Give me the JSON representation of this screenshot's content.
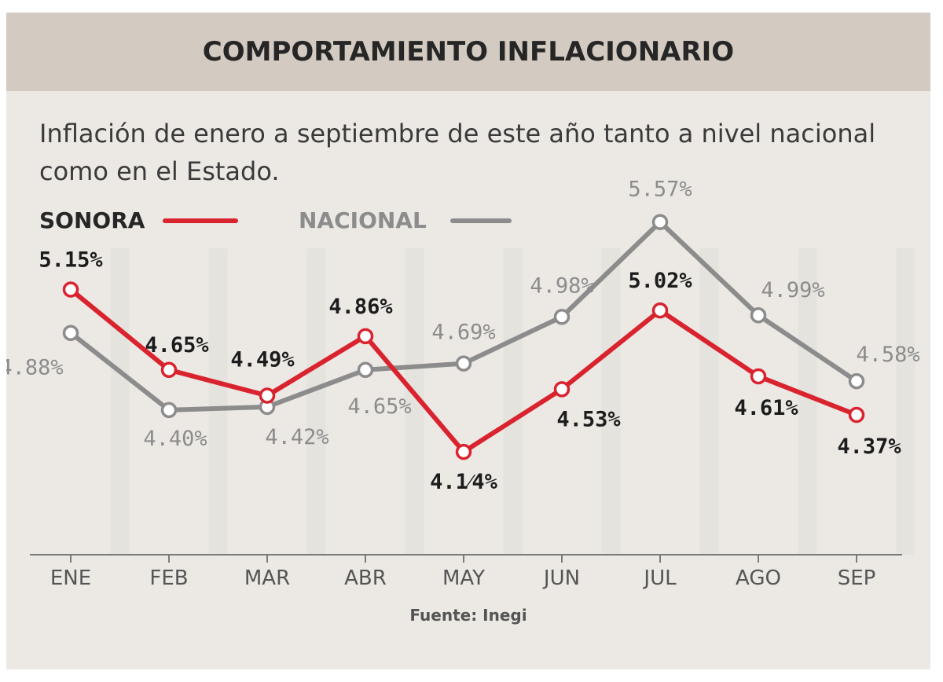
{
  "header": {
    "title": "COMPORTAMIENTO INFLACIONARIO"
  },
  "subtitle": "Inflación de enero a septiembre de este año tanto a nivel nacional como en el Estado.",
  "source": "Fuente: Inegi",
  "colors": {
    "sonora": "#d9232e",
    "nacional": "#8c8c8c",
    "header_bg": "#d3cbc1",
    "panel_bg": "#ece9e5"
  },
  "chart_data": {
    "type": "line",
    "title": "COMPORTAMIENTO INFLACIONARIO",
    "subtitle": "Inflación de enero a septiembre de este año tanto a nivel nacional como en el Estado.",
    "categories": [
      "ENE",
      "FEB",
      "MAR",
      "ABR",
      "MAY",
      "JUN",
      "JUL",
      "AGO",
      "SEP"
    ],
    "series": [
      {
        "name": "SONORA",
        "color": "#d9232e",
        "values": [
          5.15,
          4.65,
          4.49,
          4.86,
          4.14,
          4.53,
          5.02,
          4.61,
          4.37
        ],
        "labels": [
          "5.15%",
          "4.65%",
          "4.49%",
          "4.86%",
          "4.1⁄4%",
          "4.53%",
          "5.02%",
          "4.61%",
          "4.37%"
        ]
      },
      {
        "name": "NACIONAL",
        "color": "#8c8c8c",
        "values": [
          4.88,
          4.4,
          4.42,
          4.65,
          4.69,
          4.98,
          5.57,
          4.99,
          4.58
        ],
        "labels": [
          "4.88%",
          "4.40%",
          "4.42%",
          "4.65%",
          "4.69%",
          "4.98%",
          "5.57%",
          "4.99%",
          "4.58%"
        ]
      }
    ],
    "legend": "top-left",
    "grid": false,
    "ylim": [
      3.5,
      5.7
    ]
  }
}
